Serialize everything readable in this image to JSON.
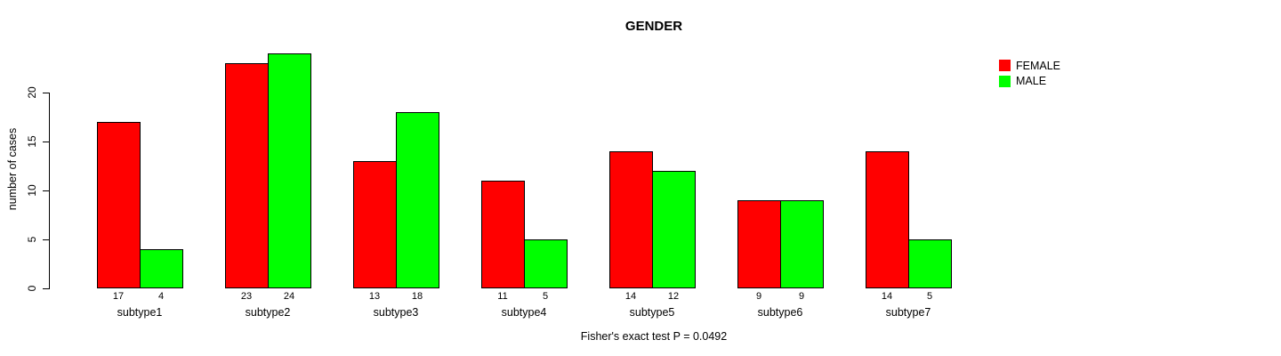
{
  "chart_data": {
    "type": "bar",
    "title": "GENDER",
    "ylabel": "number of cases",
    "xlabel": "",
    "caption": "Fisher's exact test P = 0.0492",
    "categories": [
      "subtype1",
      "subtype2",
      "subtype3",
      "subtype4",
      "subtype5",
      "subtype6",
      "subtype7"
    ],
    "series": [
      {
        "name": "FEMALE",
        "color": "#ff0000",
        "values": [
          17,
          23,
          13,
          11,
          14,
          9,
          14
        ]
      },
      {
        "name": "MALE",
        "color": "#00ff00",
        "values": [
          4,
          24,
          18,
          5,
          12,
          9,
          5
        ]
      }
    ],
    "bar_value_labels": [
      [
        "17",
        "4"
      ],
      [
        "23",
        "24"
      ],
      [
        "13",
        "18"
      ],
      [
        "11",
        "5"
      ],
      [
        "14",
        "12"
      ],
      [
        "9",
        "9"
      ],
      [
        "14",
        "5"
      ]
    ],
    "yticks": [
      0,
      5,
      10,
      15,
      20
    ],
    "ylim": [
      0,
      24
    ],
    "grid": false,
    "legend_position": "top-right",
    "bar_border_color": "#000000",
    "background_color": "#ffffff"
  }
}
